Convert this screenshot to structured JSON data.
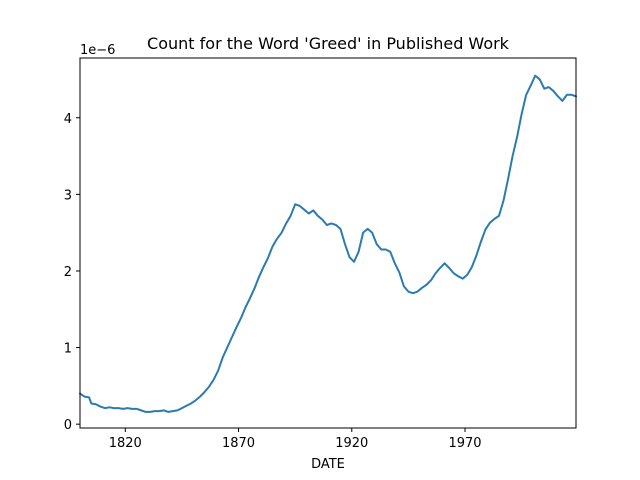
{
  "chart_data": {
    "type": "line",
    "title": "Count for the Word 'Greed' in Published Work",
    "xlabel": "DATE",
    "ylabel": "",
    "y_offset_label": "1e−6",
    "y_scale_multiplier": 1e-06,
    "xlim": [
      1800,
      2019
    ],
    "ylim": [
      -0.05,
      4.78
    ],
    "x_ticks": [
      1820,
      1870,
      1920,
      1970
    ],
    "y_ticks": [
      0,
      1,
      2,
      3,
      4
    ],
    "grid": false,
    "colors": {
      "line": "#2a7bb0",
      "axes": "#000000"
    },
    "series": [
      {
        "x": [
          1800,
          1802,
          1804,
          1805,
          1807,
          1809,
          1811,
          1813,
          1815,
          1817,
          1819,
          1821,
          1823,
          1825,
          1827,
          1829,
          1831,
          1833,
          1835,
          1837,
          1839,
          1841,
          1843,
          1845,
          1847,
          1849,
          1851,
          1853,
          1855,
          1857,
          1859,
          1861,
          1863,
          1865,
          1867,
          1869,
          1871,
          1873,
          1875,
          1877,
          1879,
          1881,
          1883,
          1885,
          1887,
          1889,
          1891,
          1893,
          1895,
          1897,
          1899,
          1901,
          1903,
          1905,
          1907,
          1909,
          1911,
          1913,
          1915,
          1917,
          1919,
          1921,
          1923,
          1925,
          1927,
          1929,
          1931,
          1933,
          1935,
          1937,
          1939,
          1941,
          1943,
          1945,
          1947,
          1949,
          1951,
          1953,
          1955,
          1957,
          1959,
          1961,
          1963,
          1965,
          1967,
          1969,
          1971,
          1973,
          1975,
          1977,
          1979,
          1981,
          1983,
          1985,
          1987,
          1989,
          1991,
          1993,
          1995,
          1997,
          1999,
          2001,
          2003,
          2005,
          2007,
          2009,
          2011,
          2013,
          2015,
          2017,
          2019
        ],
        "y": [
          0.4,
          0.36,
          0.35,
          0.27,
          0.26,
          0.23,
          0.21,
          0.22,
          0.21,
          0.21,
          0.2,
          0.21,
          0.2,
          0.2,
          0.18,
          0.16,
          0.16,
          0.17,
          0.17,
          0.18,
          0.16,
          0.17,
          0.18,
          0.21,
          0.24,
          0.27,
          0.31,
          0.36,
          0.42,
          0.49,
          0.58,
          0.7,
          0.87,
          1.0,
          1.13,
          1.26,
          1.38,
          1.52,
          1.64,
          1.77,
          1.92,
          2.05,
          2.17,
          2.32,
          2.42,
          2.5,
          2.62,
          2.72,
          2.87,
          2.85,
          2.8,
          2.75,
          2.79,
          2.72,
          2.67,
          2.6,
          2.62,
          2.6,
          2.55,
          2.35,
          2.18,
          2.12,
          2.25,
          2.5,
          2.55,
          2.5,
          2.35,
          2.28,
          2.28,
          2.25,
          2.1,
          1.98,
          1.8,
          1.73,
          1.71,
          1.73,
          1.78,
          1.82,
          1.88,
          1.97,
          2.04,
          2.1,
          2.04,
          1.97,
          1.93,
          1.9,
          1.95,
          2.05,
          2.2,
          2.38,
          2.54,
          2.63,
          2.68,
          2.72,
          2.92,
          3.2,
          3.5,
          3.75,
          4.05,
          4.3,
          4.42,
          4.55,
          4.5,
          4.38,
          4.4,
          4.35,
          4.28,
          4.22,
          4.3,
          4.3,
          4.28
        ]
      }
    ]
  }
}
